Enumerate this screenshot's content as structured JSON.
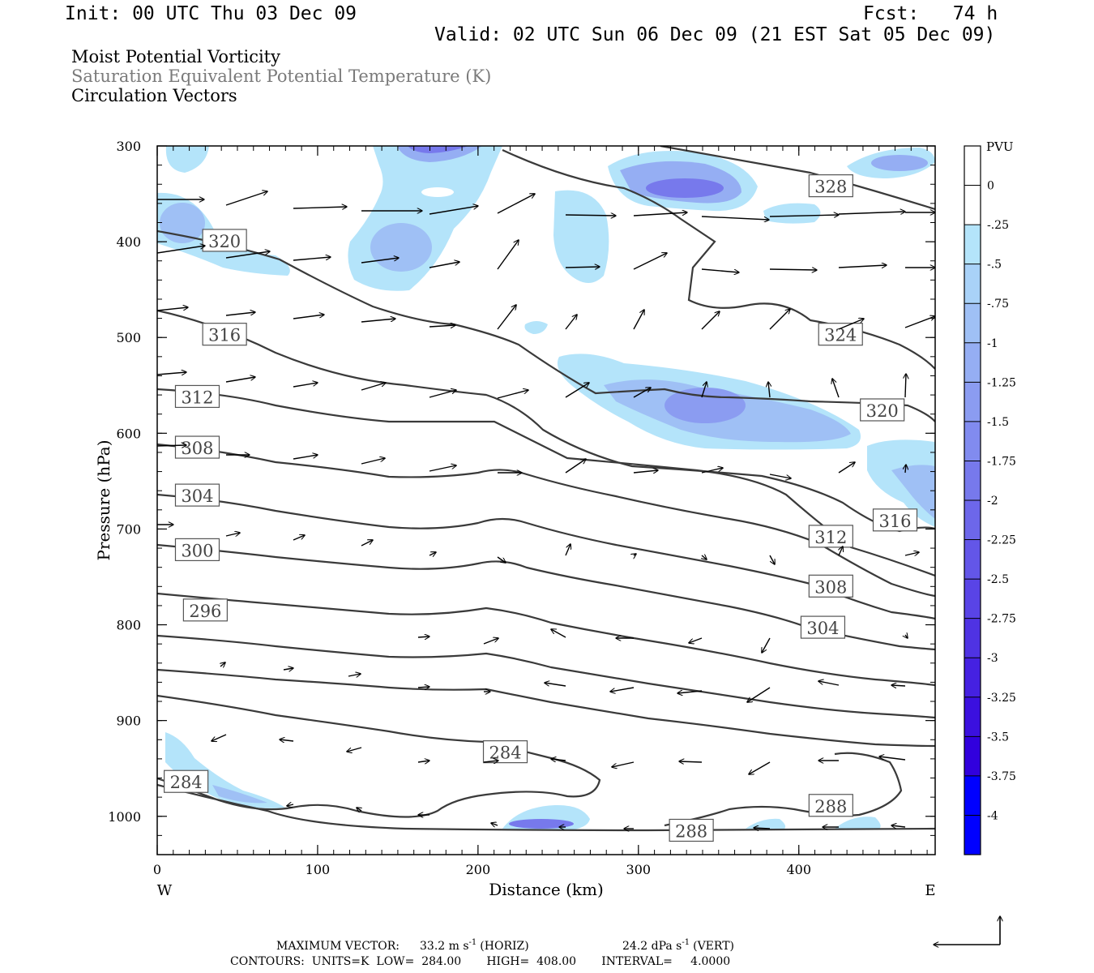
{
  "header": {
    "init": "Init: 00 UTC Thu 03 Dec 09",
    "fcst": "Fcst:   74 h",
    "valid": "Valid: 02 UTC Sun 06 Dec 09 (21 EST Sat 05 Dec 09)"
  },
  "titles": {
    "line1": "Moist Potential Vorticity",
    "line2": "Saturation Equivalent Potential Temperature (K)",
    "line3": "Circulation Vectors"
  },
  "footer": {
    "max_vector_label": "MAXIMUM VECTOR:",
    "horiz": "33.2 m s",
    "horiz_unit": "(HORIZ)",
    "vert": "24.2 dPa s",
    "vert_unit": "(VERT)",
    "exponent": "-1",
    "contours": "CONTOURS:  UNITS=K  LOW=  284.00       HIGH=  408.00       INTERVAL=     4.0000"
  },
  "chart_data": {
    "type": "heatmap",
    "xlabel": "Distance (km)",
    "ylabel": "Pressure (hPa)",
    "x_end_labels": [
      "W",
      "E"
    ],
    "xlim": [
      0,
      485
    ],
    "ylim": [
      1040,
      300
    ],
    "x_ticks": [
      0,
      100,
      200,
      300,
      400
    ],
    "y_ticks": [
      300,
      400,
      500,
      600,
      700,
      800,
      900,
      1000
    ],
    "colorbar": {
      "title": "PVU",
      "ticks": [
        "0",
        "-.25",
        "-.5",
        "-.75",
        "-1",
        "-1.25",
        "-1.5",
        "-1.75",
        "-2",
        "-2.25",
        "-2.5",
        "-2.75",
        "-3",
        "-3.25",
        "-3.5",
        "-3.75",
        "-4"
      ],
      "colors": [
        "#ffffff",
        "#ffffff",
        "#b4e4fa",
        "#a9d2f8",
        "#9fc0f5",
        "#95aef3",
        "#8b9cf1",
        "#818bef",
        "#7779ec",
        "#6d67ea",
        "#6356e8",
        "#5944e6",
        "#4f33e3",
        "#4521e1",
        "#3b10df",
        "#3100dd",
        "#0000ff",
        "#0000ff"
      ]
    },
    "contour_labels": [
      {
        "label": "328",
        "x": 420,
        "p": 342
      },
      {
        "label": "320",
        "x": 42,
        "p": 399
      },
      {
        "label": "316",
        "x": 42,
        "p": 497
      },
      {
        "label": "324",
        "x": 426,
        "p": 497
      },
      {
        "label": "312",
        "x": 25,
        "p": 562
      },
      {
        "label": "320",
        "x": 452,
        "p": 576
      },
      {
        "label": "308",
        "x": 25,
        "p": 615
      },
      {
        "label": "304",
        "x": 25,
        "p": 665
      },
      {
        "label": "316",
        "x": 460,
        "p": 691
      },
      {
        "label": "312",
        "x": 420,
        "p": 708
      },
      {
        "label": "300",
        "x": 25,
        "p": 722
      },
      {
        "label": "308",
        "x": 420,
        "p": 760
      },
      {
        "label": "296",
        "x": 30,
        "p": 785
      },
      {
        "label": "304",
        "x": 415,
        "p": 803
      },
      {
        "label": "284",
        "x": 217,
        "p": 933
      },
      {
        "label": "284",
        "x": 18,
        "p": 964
      },
      {
        "label": "288",
        "x": 420,
        "p": 989
      },
      {
        "label": "288",
        "x": 333,
        "p": 1015
      }
    ],
    "vector_legend": {
      "horiz": 33.2,
      "vert": 24.2
    }
  }
}
